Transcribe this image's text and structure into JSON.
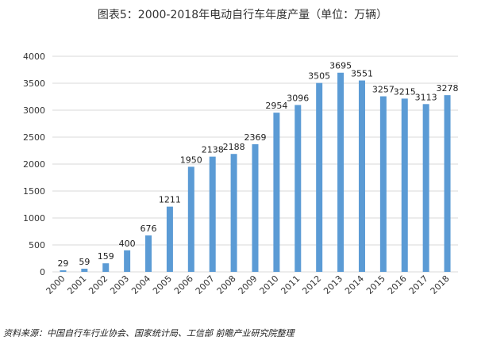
{
  "title": "图表5：2000-2018年电动自行车年度产量（单位：万辆）",
  "source": "资料来源：中国自行车行业协会、国家统计局、工信部 前瞻产业研究院整理",
  "colors": {
    "bar": "#5B9BD5",
    "grid": "#D9D9D9",
    "axis_text": "#333333",
    "label_text": "#222222"
  },
  "chart_data": {
    "type": "bar",
    "categories": [
      "2000",
      "2001",
      "2002",
      "2003",
      "2004",
      "2005",
      "2006",
      "2007",
      "2008",
      "2009",
      "2010",
      "2011",
      "2012",
      "2013",
      "2014",
      "2015",
      "2016",
      "2017",
      "2018"
    ],
    "values": [
      29,
      59,
      159,
      400,
      676,
      1211,
      1950,
      2138,
      2188,
      2369,
      2954,
      3096,
      3505,
      3695,
      3551,
      3257,
      3215,
      3113,
      3278
    ],
    "yticks": [
      0,
      500,
      1000,
      1500,
      2000,
      2500,
      3000,
      3500,
      4000
    ],
    "ylim": [
      0,
      4000
    ],
    "grid": true,
    "legend": "none"
  }
}
